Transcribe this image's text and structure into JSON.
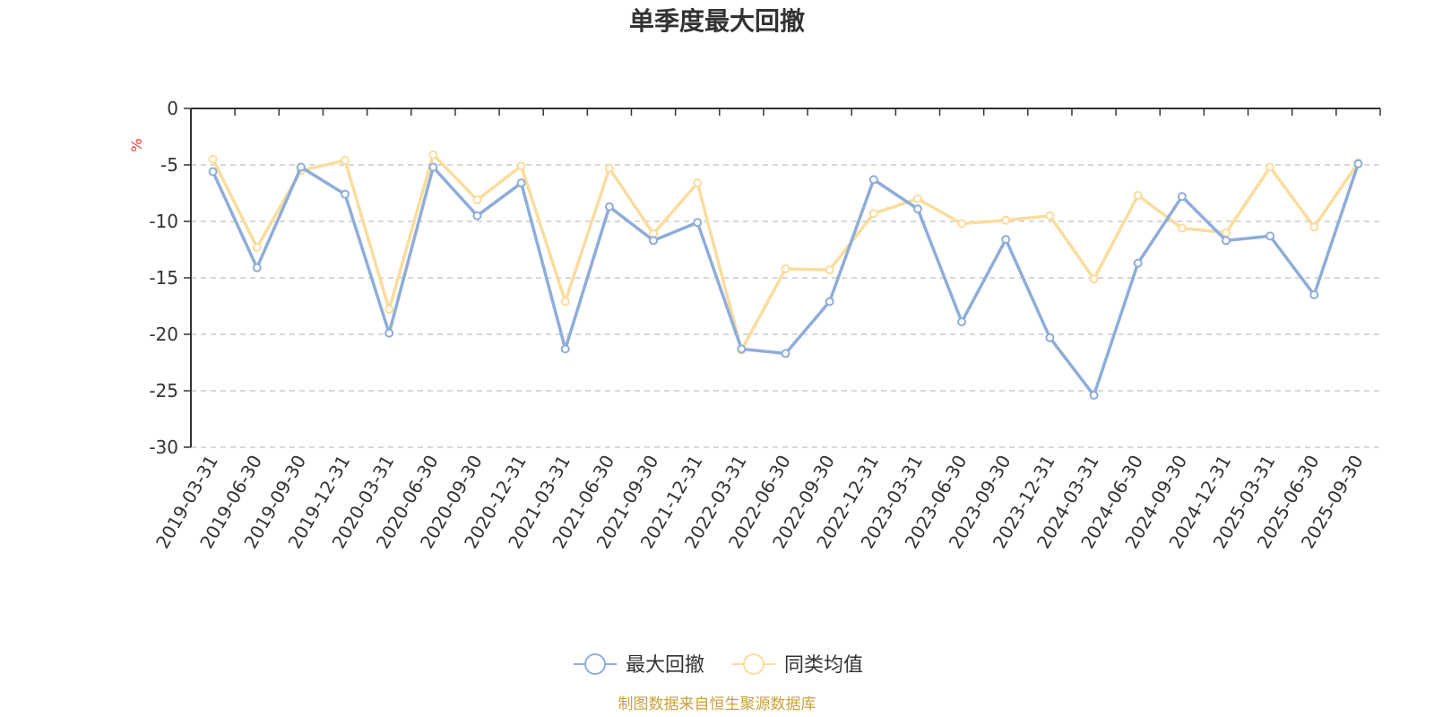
{
  "chart_data": {
    "type": "line",
    "title": "单季度最大回撤",
    "ylabel": "%",
    "ylim": [
      -30,
      0
    ],
    "yticks": [
      0,
      -5,
      -10,
      -15,
      -20,
      -25,
      -30
    ],
    "grid": true,
    "legend_position": "bottom",
    "categories": [
      "2019-03-31",
      "2019-06-30",
      "2019-09-30",
      "2019-12-31",
      "2020-03-31",
      "2020-06-30",
      "2020-09-30",
      "2020-12-31",
      "2021-03-31",
      "2021-06-30",
      "2021-09-30",
      "2021-12-31",
      "2022-03-31",
      "2022-06-30",
      "2022-09-30",
      "2022-12-31",
      "2023-03-31",
      "2023-06-30",
      "2023-09-30",
      "2023-12-31",
      "2024-03-31",
      "2024-06-30",
      "2024-09-30",
      "2024-12-31",
      "2025-03-31",
      "2025-06-30",
      "2025-09-30"
    ],
    "series": [
      {
        "name": "最大回撤",
        "color": "#8eadd9",
        "values": [
          -5.6,
          -14.1,
          -5.2,
          -7.6,
          -19.9,
          -5.2,
          -9.5,
          -6.6,
          -21.3,
          -8.7,
          -11.7,
          -10.1,
          -21.3,
          -21.7,
          -17.1,
          -6.3,
          -8.9,
          -18.9,
          -11.6,
          -20.3,
          -25.4,
          -13.7,
          -7.8,
          -11.7,
          -11.3,
          -16.5,
          -4.9
        ]
      },
      {
        "name": "同类均值",
        "color": "#fbdc9c",
        "values": [
          -4.5,
          -12.3,
          -5.5,
          -4.6,
          -17.8,
          -4.1,
          -8.1,
          -5.1,
          -17.1,
          -5.3,
          -11.1,
          -6.6,
          -21.4,
          -14.2,
          -14.3,
          -9.3,
          -8.0,
          -10.2,
          -9.9,
          -9.5,
          -15.1,
          -7.7,
          -10.6,
          -11.0,
          -5.2,
          -10.5,
          -4.8
        ]
      }
    ]
  },
  "footer": {
    "source": "制图数据来自恒生聚源数据库",
    "source_color": "#c9a13c"
  },
  "colors": {
    "axis": "#333333",
    "grid": "#cccccc",
    "unit": "#e8392f"
  }
}
